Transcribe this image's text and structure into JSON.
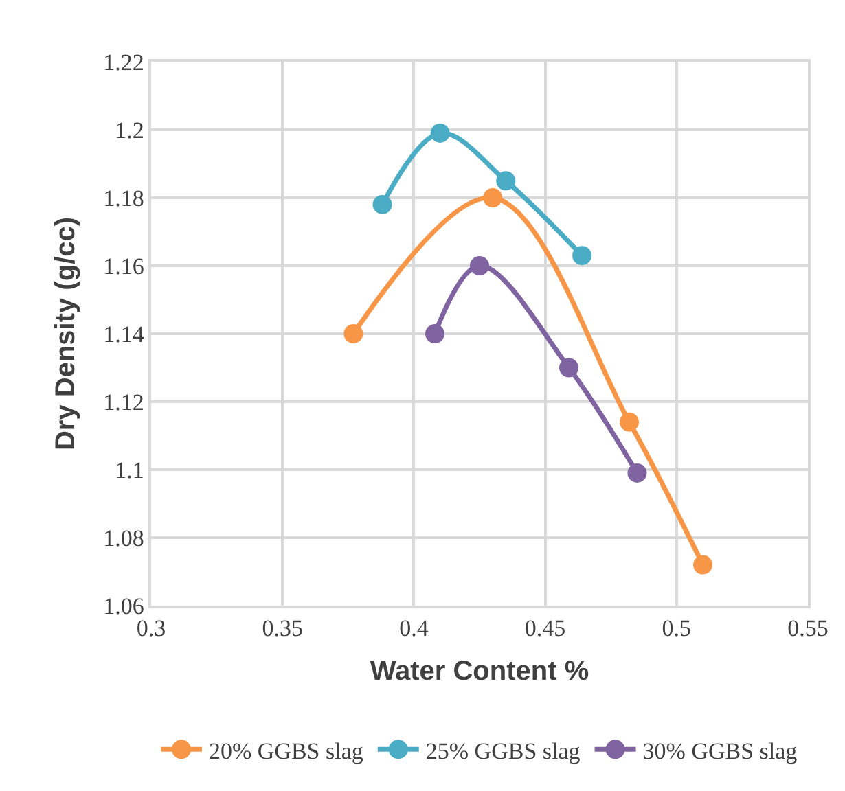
{
  "chart_data": {
    "type": "line",
    "xlabel": "Water Content %",
    "ylabel": "Dry Density (g/cc)",
    "xlim": [
      0.3,
      0.55
    ],
    "xticks": [
      0.3,
      0.35,
      0.4,
      0.45,
      0.5,
      0.55
    ],
    "ylim": [
      1.06,
      1.22
    ],
    "yticks": [
      1.06,
      1.08,
      1.1,
      1.12,
      1.14,
      1.16,
      1.18,
      1.2,
      1.22
    ],
    "grid": true,
    "legend": "bottom",
    "marker": "circle",
    "line_style": "solid",
    "series": [
      {
        "name": "20% GGBS slag",
        "color": "#f79646",
        "x": [
          0.377,
          0.43,
          0.482,
          0.51
        ],
        "values": [
          1.14,
          1.18,
          1.114,
          1.072
        ]
      },
      {
        "name": "25% GGBS slag",
        "color": "#4bacc6",
        "x": [
          0.388,
          0.41,
          0.435,
          0.464
        ],
        "values": [
          1.178,
          1.199,
          1.185,
          1.163
        ]
      },
      {
        "name": "30% GGBS slag",
        "color": "#8064a2",
        "x": [
          0.408,
          0.425,
          0.459,
          0.485
        ],
        "values": [
          1.14,
          1.16,
          1.13,
          1.099
        ]
      }
    ]
  }
}
